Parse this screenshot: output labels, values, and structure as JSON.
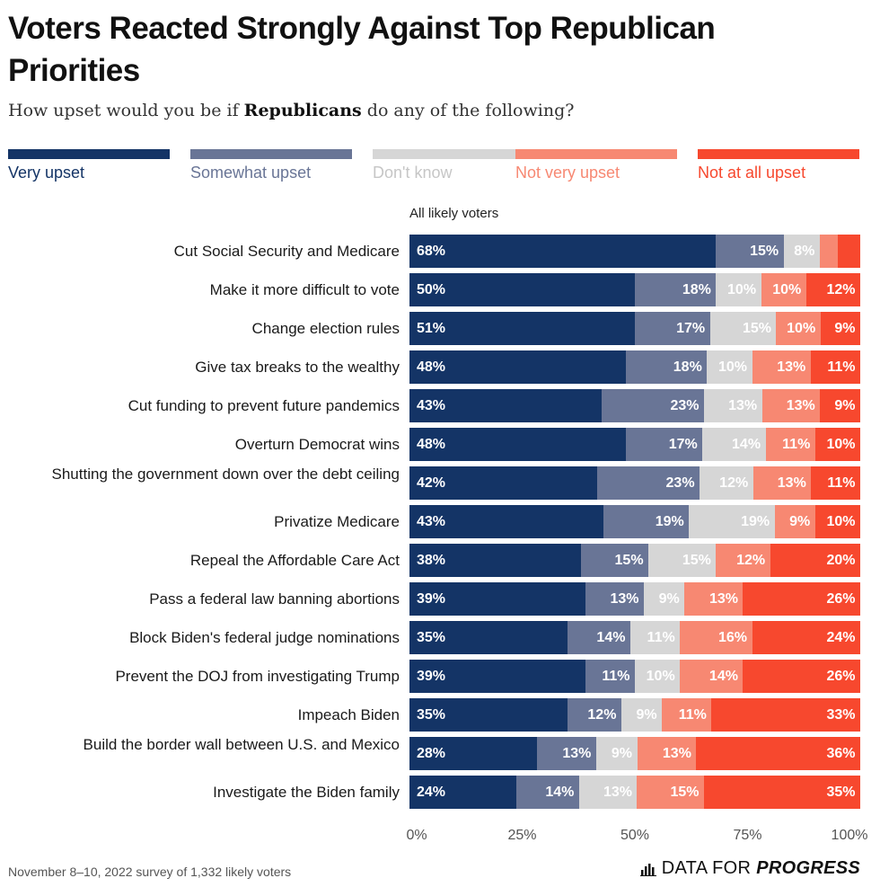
{
  "title": "Voters Reacted Strongly Against Top Republican Priorities",
  "subtitle": {
    "before": "How upset would you be if ",
    "bold": "Republicans",
    "after": " do any of the following?"
  },
  "column_header": "All likely voters",
  "footer": "November 8–10, 2022 survey of 1,332 likely voters",
  "brand": {
    "plain": "DATA FOR",
    "bold": "PROGRESS"
  },
  "colors": {
    "very_upset": "#143466",
    "somewhat_upset": "#697596",
    "dont_know": "#d6d6d6",
    "not_very_upset": "#f78872",
    "not_at_all_upset": "#f7482e",
    "legend_dont_know_text": "#c6c6c6"
  },
  "chart_data": {
    "type": "bar",
    "orientation": "horizontal",
    "stacked": true,
    "xlim": [
      0,
      100
    ],
    "x_ticks": [
      "0%",
      "25%",
      "50%",
      "75%",
      "100%"
    ],
    "legend": [
      "Very upset",
      "Somewhat upset",
      "Don't know",
      "Not very upset",
      "Not at all upset"
    ],
    "categories": [
      "Cut Social Security and Medicare",
      "Make it more difficult to vote",
      "Change election rules",
      "Give tax breaks to the wealthy",
      "Cut funding to prevent future pandemics",
      "Overturn Democrat wins",
      "Shutting the government down over the debt ceiling",
      "Privatize Medicare",
      "Repeal the Affordable Care Act",
      "Pass a federal law banning abortions",
      "Block Biden's federal judge nominations",
      "Prevent the DOJ from investigating Trump",
      "Impeach Biden",
      "Build the border wall between U.S. and Mexico",
      "Investigate the Biden family"
    ],
    "series": [
      {
        "name": "Very upset",
        "values": [
          68,
          50,
          51,
          48,
          43,
          48,
          42,
          43,
          38,
          39,
          35,
          39,
          35,
          28,
          24
        ]
      },
      {
        "name": "Somewhat upset",
        "values": [
          15,
          18,
          17,
          18,
          23,
          17,
          23,
          19,
          15,
          13,
          14,
          11,
          12,
          13,
          14
        ]
      },
      {
        "name": "Don't know",
        "values": [
          8,
          10,
          15,
          10,
          13,
          14,
          12,
          19,
          15,
          9,
          11,
          10,
          9,
          9,
          13
        ]
      },
      {
        "name": "Not very upset",
        "values": [
          4,
          10,
          10,
          13,
          13,
          11,
          13,
          9,
          12,
          13,
          16,
          14,
          11,
          13,
          15
        ]
      },
      {
        "name": "Not at all upset",
        "values": [
          5,
          12,
          9,
          11,
          9,
          10,
          11,
          10,
          20,
          26,
          24,
          26,
          33,
          36,
          35
        ]
      }
    ],
    "data_labels": [
      [
        "68%",
        "15%",
        "8%",
        "",
        ""
      ],
      [
        "50%",
        "18%",
        "10%",
        "10%",
        "12%"
      ],
      [
        "51%",
        "17%",
        "15%",
        "10%",
        "9%"
      ],
      [
        "48%",
        "18%",
        "10%",
        "13%",
        "11%"
      ],
      [
        "43%",
        "23%",
        "13%",
        "13%",
        "9%"
      ],
      [
        "48%",
        "17%",
        "14%",
        "11%",
        "10%"
      ],
      [
        "42%",
        "23%",
        "12%",
        "13%",
        "11%"
      ],
      [
        "43%",
        "19%",
        "19%",
        "9%",
        "10%"
      ],
      [
        "38%",
        "15%",
        "15%",
        "12%",
        "20%"
      ],
      [
        "39%",
        "13%",
        "9%",
        "13%",
        "26%"
      ],
      [
        "35%",
        "14%",
        "11%",
        "16%",
        "24%"
      ],
      [
        "39%",
        "11%",
        "10%",
        "14%",
        "26%"
      ],
      [
        "35%",
        "12%",
        "9%",
        "11%",
        "33%"
      ],
      [
        "28%",
        "13%",
        "9%",
        "13%",
        "36%"
      ],
      [
        "24%",
        "14%",
        "13%",
        "15%",
        "35%"
      ]
    ]
  }
}
